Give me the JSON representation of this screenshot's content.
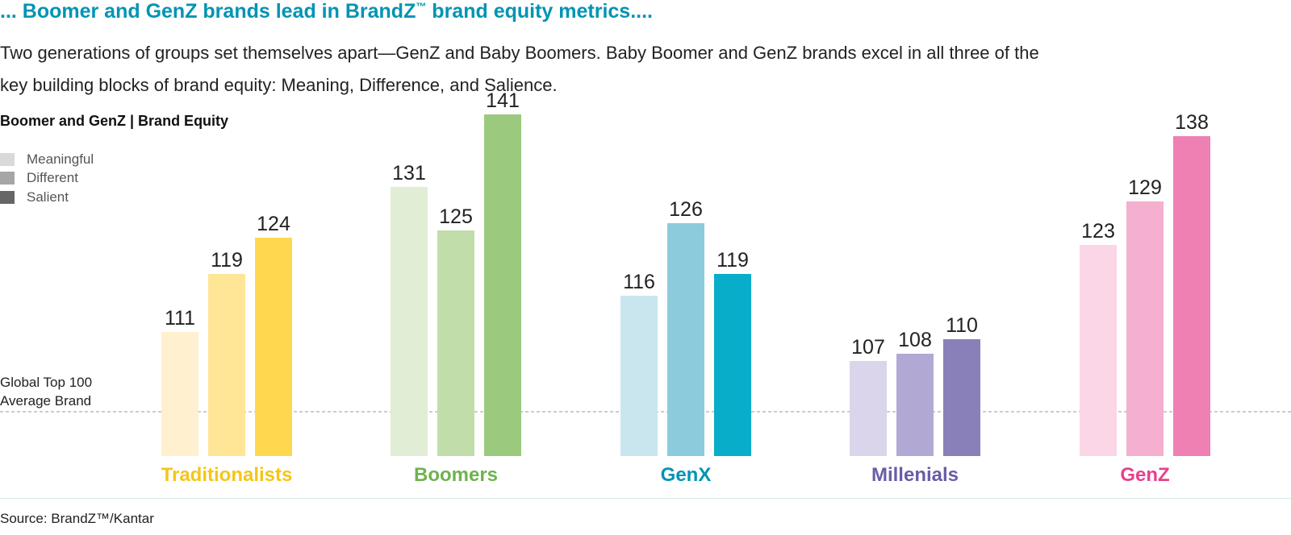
{
  "headline": {
    "text": "... Boomer and GenZ brands lead in BrandZ",
    "tm": "™",
    "text_after": " brand equity metrics...."
  },
  "intro": "Two generations of groups set themselves apart—GenZ and Baby Boomers. Baby Boomer and GenZ brands excel in all three of the key building blocks of brand equity: Meaning, Difference, and Salience.",
  "source": "Source: BrandZ™/Kantar",
  "chart_data": {
    "type": "bar",
    "title": "Boomer and GenZ | Brand Equity",
    "categories": [
      "Traditionalists",
      "Boomers",
      "GenX",
      "Millenials",
      "GenZ"
    ],
    "category_colors": [
      "#f5c518",
      "#6fb24f",
      "#0094b3",
      "#6a5ba8",
      "#e8408d"
    ],
    "series": [
      {
        "name": "Meaningful",
        "values": [
          111,
          131,
          116,
          107,
          123
        ]
      },
      {
        "name": "Different",
        "values": [
          119,
          125,
          126,
          108,
          129
        ]
      },
      {
        "name": "Salient",
        "values": [
          124,
          141,
          119,
          110,
          138
        ]
      }
    ],
    "legend_swatch_colors": [
      "#d9d9d9",
      "#a6a6a6",
      "#666666"
    ],
    "bar_colors": [
      [
        "#fff0cf",
        "#ffe596",
        "#ffd84f"
      ],
      [
        "#e1edd4",
        "#c1ddaa",
        "#9bca7e"
      ],
      [
        "#c9e6ee",
        "#8ccbdc",
        "#08adca"
      ],
      [
        "#dad5ea",
        "#b1a9d3",
        "#8a80b9"
      ],
      [
        "#fbd6e7",
        "#f5afcf",
        "#ef80b4"
      ]
    ],
    "reference_line": {
      "label": "Global Top 100 Average Brand",
      "value": 100
    },
    "ylim": [
      80,
      145
    ],
    "legend": "top-left",
    "grid": false
  }
}
